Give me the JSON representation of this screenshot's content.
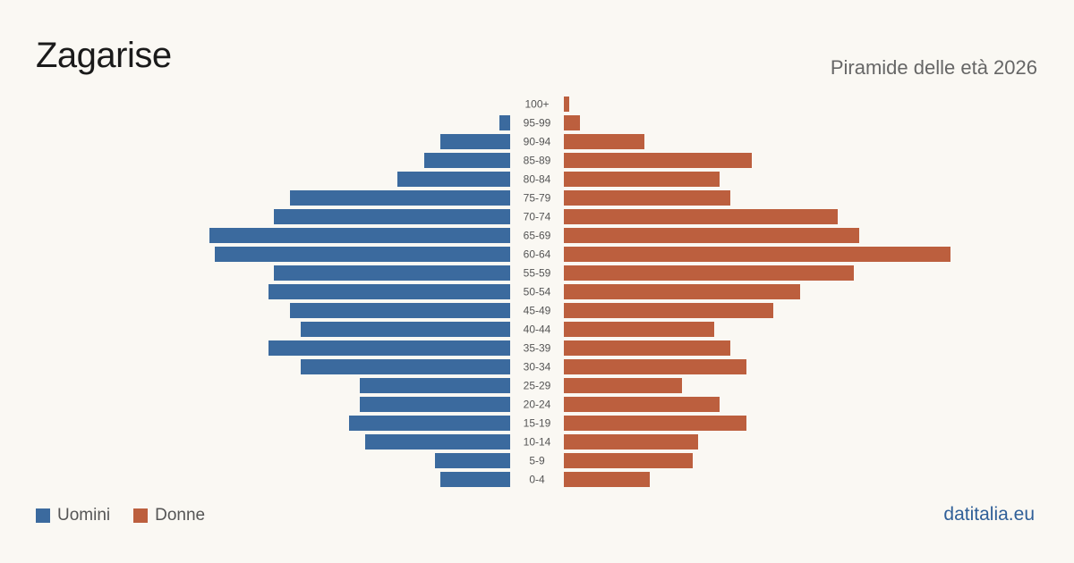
{
  "header": {
    "title": "Zagarise",
    "subtitle": "Piramide delle età 2026"
  },
  "legend": {
    "male_label": "Uomini",
    "female_label": "Donne"
  },
  "brand": "datitalia.eu",
  "colors": {
    "male": "#3b6a9e",
    "female": "#bc5f3e",
    "background": "#faf8f3"
  },
  "chart_data": {
    "type": "bar",
    "orientation": "horizontal-pyramid",
    "title": "Zagarise",
    "subtitle": "Piramide delle età 2026",
    "categories": [
      "100+",
      "95-99",
      "90-94",
      "85-89",
      "80-84",
      "75-79",
      "70-74",
      "65-69",
      "60-64",
      "55-59",
      "50-54",
      "45-49",
      "40-44",
      "35-39",
      "30-34",
      "25-29",
      "20-24",
      "15-19",
      "10-14",
      "5-9",
      "0-4"
    ],
    "series": [
      {
        "name": "Uomini",
        "color": "#3b6a9e",
        "values": [
          0,
          2,
          13,
          16,
          21,
          41,
          44,
          56,
          55,
          44,
          45,
          41,
          39,
          45,
          39,
          28,
          28,
          30,
          27,
          14,
          13
        ]
      },
      {
        "name": "Donne",
        "color": "#bc5f3e",
        "values": [
          1,
          3,
          15,
          35,
          29,
          31,
          51,
          55,
          72,
          54,
          44,
          39,
          28,
          31,
          34,
          22,
          29,
          34,
          25,
          24,
          16
        ]
      }
    ],
    "grid": false,
    "legend_position": "bottom-left"
  }
}
